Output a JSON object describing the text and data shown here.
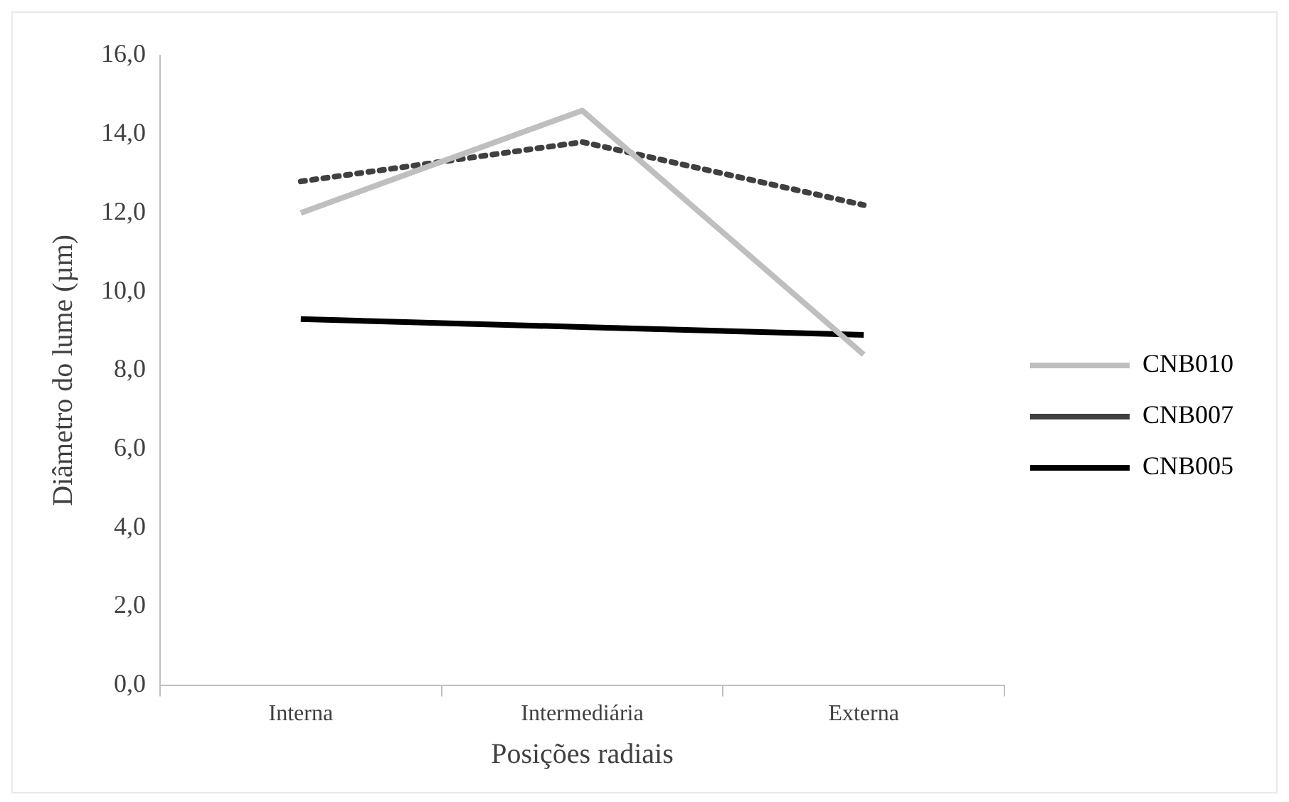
{
  "chart_data": {
    "type": "line",
    "xlabel": "Posições radiais",
    "ylabel": "Diâmetro do lume (µm)",
    "categories": [
      "Interna",
      "Intermediária",
      "Externa"
    ],
    "series": [
      {
        "name": "CNB010",
        "color": "#bfbfbf",
        "values": [
          12.0,
          14.6,
          8.4
        ],
        "line_style": "solid"
      },
      {
        "name": "CNB007",
        "color": "#404040",
        "values": [
          12.8,
          13.8,
          12.2
        ],
        "line_style": "dotted"
      },
      {
        "name": "CNB005",
        "color": "#000000",
        "values": [
          9.3,
          9.1,
          8.9
        ],
        "line_style": "solid"
      }
    ],
    "ylim": [
      0,
      16
    ],
    "yticks": [
      {
        "value": 0,
        "label": "0,0"
      },
      {
        "value": 2,
        "label": "2,0"
      },
      {
        "value": 4,
        "label": "4,0"
      },
      {
        "value": 6,
        "label": "6,0"
      },
      {
        "value": 8,
        "label": "8,0"
      },
      {
        "value": 10,
        "label": "10,0"
      },
      {
        "value": 12,
        "label": "12,0"
      },
      {
        "value": 14,
        "label": "14,0"
      },
      {
        "value": 16,
        "label": "16,0"
      }
    ],
    "grid": false,
    "legend": "right",
    "marker": "none"
  }
}
